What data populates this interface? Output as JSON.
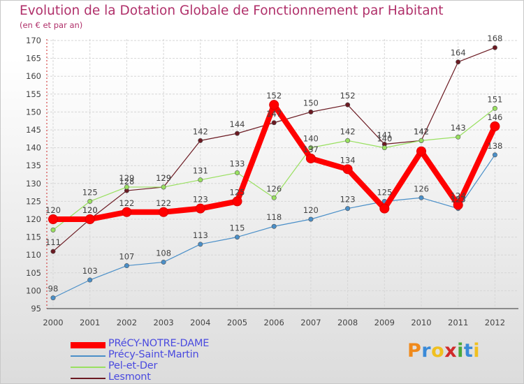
{
  "chart_data": {
    "type": "line",
    "title": "Evolution de la Dotation Globale de Fonctionnement par Habitant",
    "subtitle": "(en € et par an)",
    "xlabel": "",
    "ylabel": "",
    "ylim": [
      95,
      170
    ],
    "yticks": [
      95,
      100,
      105,
      110,
      115,
      120,
      125,
      130,
      135,
      140,
      145,
      150,
      155,
      160,
      165,
      170
    ],
    "x": [
      "2000",
      "2001",
      "2002",
      "2003",
      "2004",
      "2005",
      "2006",
      "2007",
      "2008",
      "2009",
      "2010",
      "2011",
      "2012"
    ],
    "grid": true,
    "legend_position": "bottom-left",
    "series": [
      {
        "name": "Lesmont",
        "color": "#6b1a22",
        "values": [
          111,
          120,
          128,
          129,
          142,
          144,
          147,
          150,
          152,
          141,
          142,
          164,
          168
        ]
      },
      {
        "name": "Pel-et-Der",
        "color": "#99e060",
        "values": [
          117,
          125,
          129,
          129,
          131,
          133,
          126,
          140,
          142,
          140,
          142,
          143,
          151
        ]
      },
      {
        "name": "Précy-Saint-Martin",
        "color": "#4a8fc8",
        "values": [
          98,
          103,
          107,
          108,
          113,
          115,
          118,
          120,
          123,
          125,
          126,
          123,
          138
        ]
      },
      {
        "name": "PRéCY-NOTRE-DAME",
        "color": "#ff0000",
        "values": [
          120,
          120,
          122,
          122,
          123,
          125,
          152,
          137,
          134,
          123,
          139,
          124,
          146
        ]
      }
    ],
    "legend_order": [
      "PRéCY-NOTRE-DAME",
      "Précy-Saint-Martin",
      "Pel-et-Der",
      "Lesmont"
    ],
    "labels_shown": {
      "Lesmont": [
        111,
        120,
        128,
        129,
        142,
        144,
        147,
        150,
        152,
        141,
        142,
        164,
        168
      ],
      "Pel-et-Der": [
        null,
        125,
        129,
        129,
        131,
        133,
        126,
        140,
        142,
        140,
        142,
        143,
        151
      ],
      "Précy-Saint-Martin": [
        98,
        103,
        107,
        108,
        113,
        115,
        118,
        120,
        123,
        125,
        126,
        123,
        138
      ],
      "PRéCY-NOTRE-DAME": [
        120,
        120,
        122,
        122,
        123,
        125,
        152,
        137,
        134,
        null,
        null,
        124,
        146
      ]
    }
  },
  "logo": {
    "text": "Proxiti",
    "letters": [
      "P",
      "r",
      "o",
      "x",
      "i",
      "t",
      "i"
    ],
    "colors": [
      "#f08a1c",
      "#3a8ad8",
      "#f0c020",
      "#d02a2a",
      "#4aa83a",
      "#3a8ad8",
      "#f0c020"
    ]
  }
}
